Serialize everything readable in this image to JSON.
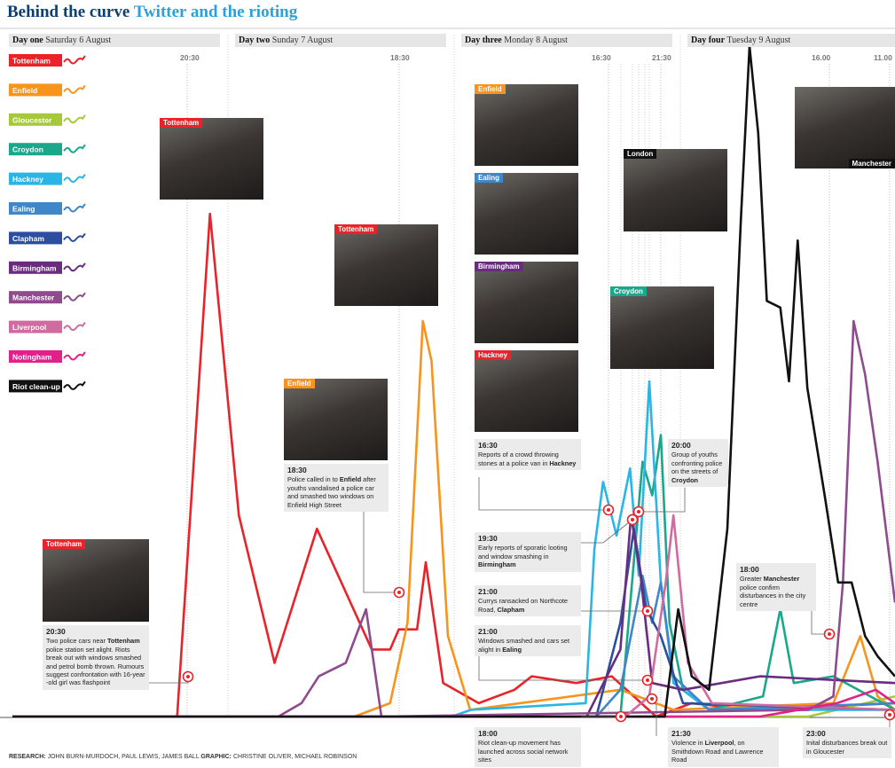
{
  "chart_data": {
    "type": "line",
    "title": "Behind the curve",
    "subtitle": "Twitter and the rioting",
    "days": [
      {
        "label": "Day one",
        "date": "Saturday 6 August"
      },
      {
        "label": "Day two",
        "date": "Sunday 7 August"
      },
      {
        "label": "Day three",
        "date": "Monday 8 August"
      },
      {
        "label": "Day four",
        "date": "Tuesday 9 August"
      }
    ],
    "time_markers": [
      "20:30",
      "18:30",
      "16:30",
      "21:30",
      "16.00",
      "11.00"
    ],
    "xlim": [
      2.4,
      94
    ],
    "ylim": [
      0,
      100
    ],
    "series": [
      {
        "name": "Tottenham",
        "color": "#e8232a",
        "x": [
          2.4,
          19.5,
          22.9,
          25.9,
          29.6,
          34.0,
          39.7,
          41.6,
          42.5,
          44.4,
          45.3,
          47.1,
          50.8,
          54.5,
          56.3,
          60.9,
          64.6,
          69.2,
          72.9,
          79.4,
          94
        ],
        "values": [
          0,
          0,
          75,
          30,
          8,
          28,
          10,
          10,
          13,
          13,
          23,
          5,
          2,
          4,
          6,
          5,
          6,
          0,
          2,
          1,
          2
        ]
      },
      {
        "name": "Enfield",
        "color": "#f7941d",
        "x": [
          2.4,
          37.9,
          41.6,
          43.4,
          45.0,
          45.9,
          47.6,
          49.9,
          65.5,
          71.0,
          87.6,
          90.4,
          92.2,
          94
        ],
        "values": [
          0,
          0,
          2,
          14,
          59,
          53,
          12,
          1,
          4,
          1,
          2,
          12,
          3,
          1
        ]
      },
      {
        "name": "Gloucester",
        "color": "#a5c93a",
        "x": [
          2.4,
          85,
          94
        ],
        "values": [
          0,
          0,
          3
        ]
      },
      {
        "name": "Croydon",
        "color": "#1aa78a",
        "x": [
          2.4,
          65.5,
          67.8,
          68.8,
          69.7,
          70.6,
          72.0,
          74.7,
          80.3,
          82.1,
          83.5,
          87.6,
          94
        ],
        "values": [
          0,
          0,
          38,
          33,
          42,
          14,
          4,
          1,
          3,
          16,
          5,
          6,
          1
        ]
      },
      {
        "name": "Hackney",
        "color": "#2bb5e6",
        "x": [
          2.4,
          48.0,
          50,
          61.9,
          62.8,
          63.7,
          65.1,
          66.5,
          67.4,
          68.5,
          69.7,
          71.0,
          74.7,
          94
        ],
        "values": [
          0,
          0,
          1,
          2,
          25,
          35,
          27,
          37,
          21,
          50,
          20,
          5,
          1,
          1
        ]
      },
      {
        "name": "Ealing",
        "color": "#3f87c8",
        "x": [
          2.4,
          63,
          65.5,
          67.8,
          68.8,
          69.7,
          71.0,
          74.7,
          94
        ],
        "values": [
          0,
          0,
          4,
          21,
          14,
          20,
          6,
          1,
          2
        ]
      },
      {
        "name": "Clapham",
        "color": "#2b4f9e",
        "x": [
          2.4,
          63,
          65.5,
          66.9,
          68.2,
          69.7,
          72.0,
          94
        ],
        "values": [
          0,
          0,
          14,
          28,
          16,
          12,
          2,
          1
        ]
      },
      {
        "name": "Birmingham",
        "color": "#6a2c7f",
        "x": [
          2.4,
          62,
          65.5,
          66.6,
          67.6,
          68.8,
          72,
          80,
          94
        ],
        "values": [
          0,
          0,
          10,
          30,
          21,
          5,
          4,
          6,
          5
        ]
      },
      {
        "name": "Manchester",
        "color": "#8e4b8e",
        "x": [
          2.4,
          30,
          32.4,
          34.2,
          37.0,
          39.1,
          40.7,
          85,
          87.6,
          88.6,
          89.7,
          90.9,
          92.2,
          94
        ],
        "values": [
          0,
          0,
          2,
          6,
          8,
          16,
          0,
          1,
          3,
          20,
          59,
          51,
          38,
          17
        ]
      },
      {
        "name": "Liverpool",
        "color": "#d06b9f",
        "x": [
          2.4,
          66,
          68.5,
          70.2,
          71.0,
          72.5,
          75,
          94
        ],
        "values": [
          0,
          0,
          3,
          20,
          30,
          8,
          2,
          1
        ]
      },
      {
        "name": "Notingham",
        "color": "#e0218a",
        "x": [
          2.4,
          80,
          88,
          92,
          94
        ],
        "values": [
          0,
          0,
          2,
          4,
          2
        ]
      },
      {
        "name": "Riot clean-up",
        "color": "#111111",
        "x": [
          2.4,
          70.1,
          71.5,
          72.9,
          74.7,
          76.6,
          78.0,
          78.9,
          79.8,
          80.7,
          82.1,
          83.0,
          83.9,
          84.9,
          86.7,
          88.1,
          89.5,
          90.9,
          92.2,
          94
        ],
        "values": [
          0,
          0,
          16,
          6,
          4,
          28,
          74,
          100,
          87,
          62,
          61,
          50,
          71,
          49,
          33,
          20,
          20,
          12,
          9,
          6
        ]
      }
    ],
    "photos": [
      "Tottenham",
      "Tottenham",
      "Enfield",
      "Tottenham",
      "Enfield",
      "Ealing",
      "Birmingham",
      "Hackney",
      "London",
      "Croydon",
      "Manchester"
    ],
    "annotations": [
      {
        "time": "20:30",
        "text": [
          "Two police cars near ",
          "Tottenham",
          " police station set alight. Riots break out with windows smashed and petrol bomb thrown. Rumours suggest confrontation with 16-year -old girl was flashpoint"
        ]
      },
      {
        "time": "18:30",
        "text": [
          "Police called in to ",
          "Enfield",
          " after youths vandalised a police car and smashed two windows on Enfield High Street"
        ]
      },
      {
        "time": "16:30",
        "text": [
          "Reports of a crowd throwing stones at a police van in ",
          "Hackney"
        ]
      },
      {
        "time": "20:00",
        "text": [
          "Group of youths confronting police on the streets of ",
          "Croydon"
        ]
      },
      {
        "time": "19:30",
        "text": [
          "Early reports of sporatic looting and window smashing in ",
          "Birmingham"
        ]
      },
      {
        "time": "21:00",
        "text": [
          "Currys ransacked on Northcote Road, ",
          "Clapham"
        ]
      },
      {
        "time": "21:00",
        "text": [
          "Windows smashed and cars set alight in ",
          "Ealing"
        ]
      },
      {
        "time": "18:00",
        "text": [
          "Greater ",
          "Manchester",
          " police confirm disturbances in the city centre"
        ]
      },
      {
        "time": "18:00",
        "text": [
          "Riot  clean-up movement has launched across social network sites"
        ]
      },
      {
        "time": "21:30",
        "text": [
          "Violence in ",
          "Liverpool",
          ", on Smithdown Road and Lawrence Road"
        ]
      },
      {
        "time": "23:00",
        "text": [
          "Inital disturbances break out in Gloucester"
        ]
      }
    ],
    "credits": [
      "RESEARCH:",
      " JOHN BURN-MURDOCH, PAUL LEWIS, JAMES BALL ",
      "GRAPHIC:",
      " CHRISTINE OLIVER, MICHAEL ROBINSON"
    ]
  }
}
